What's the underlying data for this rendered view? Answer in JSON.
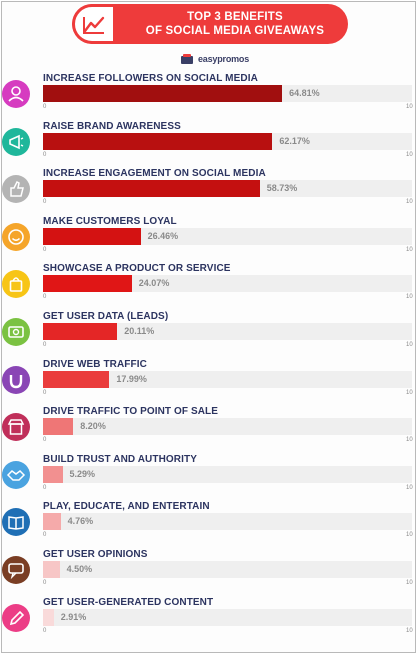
{
  "header": {
    "title_line1": "TOP 3 BENEFITS",
    "title_line2": "OF SOCIAL MEDIA GIVEAWAYS",
    "icon": "line-chart-icon"
  },
  "brand": {
    "name": "easypromos"
  },
  "colors": {
    "header": "#ee3b3b",
    "track": "#efefef"
  },
  "chart_data": {
    "type": "bar",
    "orientation": "horizontal",
    "xlim": [
      0,
      100
    ],
    "tick_min": "0",
    "tick_max": "10",
    "categories": [
      "INCREASE FOLLOWERS ON SOCIAL MEDIA",
      "RAISE BRAND AWARENESS",
      "INCREASE ENGAGEMENT ON SOCIAL MEDIA",
      "MAKE CUSTOMERS LOYAL",
      "SHOWCASE A PRODUCT OR SERVICE",
      "GET USER DATA (LEADS)",
      "DRIVE WEB TRAFFIC",
      "DRIVE TRAFFIC TO POINT OF SALE",
      "BUILD TRUST AND AUTHORITY",
      "PLAY, EDUCATE, AND ENTERTAIN",
      "GET USER OPINIONS",
      "GET USER-GENERATED CONTENT"
    ],
    "values": [
      64.81,
      62.17,
      58.73,
      26.46,
      24.07,
      20.11,
      17.99,
      8.2,
      5.29,
      4.76,
      4.5,
      2.91
    ],
    "value_labels": [
      "64.81%",
      "62.17%",
      "58.73%",
      "26.46%",
      "24.07%",
      "20.11%",
      "17.99%",
      "8.20%",
      "5.29%",
      "4.76%",
      "4.50%",
      "2.91%"
    ],
    "bar_colors": [
      "#a10f0f",
      "#b81010",
      "#c41010",
      "#d41212",
      "#e01616",
      "#e42626",
      "#ea3c3c",
      "#ef7676",
      "#f29090",
      "#f5aaaa",
      "#f7c6c6",
      "#f9dada"
    ],
    "icons": [
      "users-icon",
      "megaphone-icon",
      "thumbs-up-icon",
      "smiley-icon",
      "shopping-bag-icon",
      "money-icon",
      "magnet-icon",
      "storefront-icon",
      "handshake-icon",
      "book-icon",
      "speech-bubble-icon",
      "pencil-icon"
    ],
    "icon_colors": [
      "#d63cc0",
      "#1fb79b",
      "#b4b4b4",
      "#f5a52a",
      "#f7c516",
      "#7bc242",
      "#8a46b5",
      "#c02f5a",
      "#4aa3e0",
      "#1f6fb5",
      "#7a3e24",
      "#ec3d86"
    ]
  }
}
